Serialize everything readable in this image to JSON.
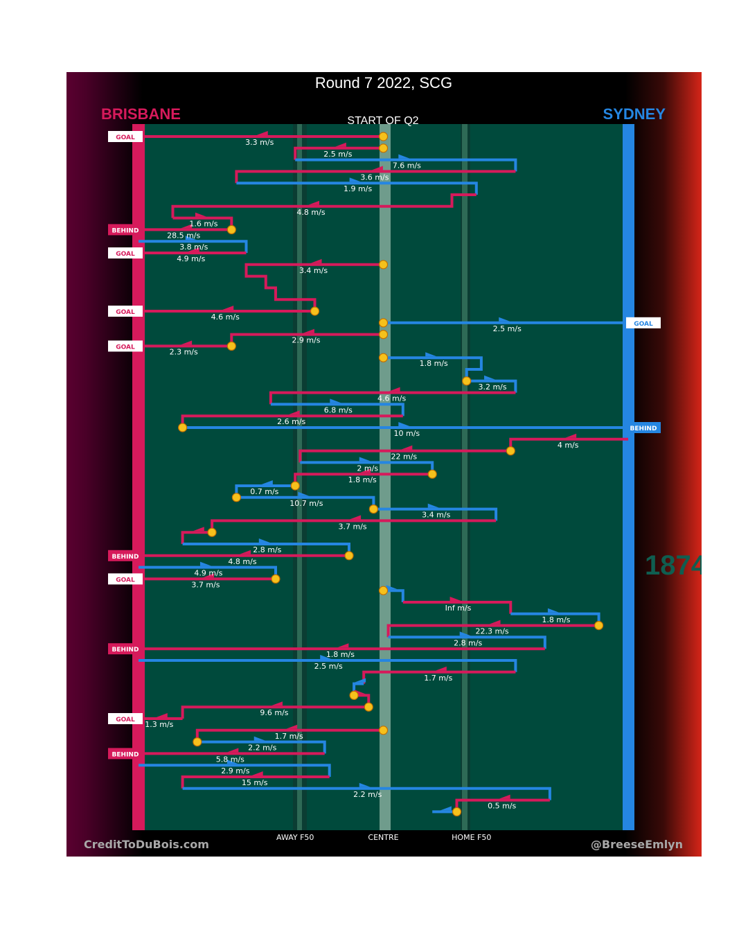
{
  "title": "Round 7 2022, SCG",
  "subtitle": "START OF Q2",
  "home_label": "BRISBANE",
  "away_label": "SYDNEY",
  "credit_left": "CreditToDuBois.com",
  "credit_right": "@BreeseEmlyn",
  "watermark_year": "1874",
  "colors": {
    "brisbane": "#d61a5b",
    "sydney": "#2586e2",
    "field": "#004a3c",
    "node": "#f6c11c"
  },
  "chart_data": {
    "type": "line",
    "title": "Round 7 2022, SCG",
    "xlabel": "",
    "ylabel": "",
    "xlim": [
      0,
      100
    ],
    "x_ticks": [
      {
        "pos": 32,
        "label": "AWAY F50"
      },
      {
        "pos": 50,
        "label": "CENTRE"
      },
      {
        "pos": 68,
        "label": "HOME F50"
      }
    ],
    "series": [
      {
        "team": "brisbane",
        "start": "node",
        "end": "GOAL",
        "label": "3.3 m/s",
        "pts": [
          [
            50,
            1
          ],
          [
            0,
            1
          ]
        ]
      },
      {
        "team": "brisbane",
        "start": "node",
        "end": "",
        "label": "2.5 m/s",
        "pts": [
          [
            50,
            2
          ],
          [
            32,
            2
          ],
          [
            32,
            3
          ]
        ]
      },
      {
        "team": "sydney",
        "start": "",
        "end": "",
        "label": "7.6 m/s",
        "pts": [
          [
            32,
            3
          ],
          [
            77,
            3
          ],
          [
            77,
            4
          ]
        ]
      },
      {
        "team": "brisbane",
        "start": "",
        "end": "",
        "label": "3.6 m/s",
        "pts": [
          [
            77,
            4
          ],
          [
            20,
            4
          ],
          [
            20,
            5
          ]
        ]
      },
      {
        "team": "sydney",
        "start": "",
        "end": "",
        "label": "1.9 m/s",
        "pts": [
          [
            20,
            5
          ],
          [
            69,
            5
          ],
          [
            69,
            6
          ]
        ]
      },
      {
        "team": "brisbane",
        "start": "",
        "end": "",
        "label": "4.8 m/s",
        "pts": [
          [
            69,
            6
          ],
          [
            64,
            6
          ],
          [
            64,
            7
          ],
          [
            7,
            7
          ],
          [
            7,
            8
          ]
        ]
      },
      {
        "team": "brisbane",
        "start": "",
        "end": "",
        "label": "1.6 m/s",
        "pts": [
          [
            7,
            8
          ],
          [
            19,
            8
          ],
          [
            19,
            9
          ]
        ]
      },
      {
        "team": "brisbane",
        "start": "node",
        "end": "BEHIND",
        "label": "28.5 m/s",
        "pts": [
          [
            19,
            9
          ],
          [
            0,
            9
          ]
        ]
      },
      {
        "team": "sydney",
        "start": "",
        "end": "",
        "label": "3.8 m/s",
        "pts": [
          [
            0,
            10
          ],
          [
            22,
            10
          ],
          [
            22,
            11
          ]
        ]
      },
      {
        "team": "brisbane",
        "start": "",
        "end": "GOAL",
        "label": "4.9 m/s",
        "pts": [
          [
            22,
            11
          ],
          [
            0,
            11
          ]
        ]
      },
      {
        "team": "brisbane",
        "start": "node",
        "end": "",
        "label": "3.4 m/s",
        "pts": [
          [
            50,
            12
          ],
          [
            22,
            12
          ],
          [
            22,
            13
          ],
          [
            26,
            13
          ],
          [
            26,
            14
          ],
          [
            28,
            14
          ],
          [
            28,
            15
          ],
          [
            36,
            15
          ],
          [
            36,
            16
          ]
        ]
      },
      {
        "team": "brisbane",
        "start": "node",
        "end": "GOAL",
        "label": "4.6 m/s",
        "pts": [
          [
            36,
            16
          ],
          [
            0,
            16
          ]
        ]
      },
      {
        "team": "sydney",
        "start": "node",
        "end": "GOAL",
        "label": "2.5 m/s",
        "pts": [
          [
            50,
            17
          ],
          [
            100,
            17
          ]
        ]
      },
      {
        "team": "brisbane",
        "start": "node",
        "end": "",
        "label": "2.9 m/s",
        "pts": [
          [
            50,
            18
          ],
          [
            19,
            18
          ],
          [
            19,
            19
          ]
        ]
      },
      {
        "team": "brisbane",
        "start": "node",
        "end": "GOAL",
        "label": "2.3 m/s",
        "pts": [
          [
            19,
            19
          ],
          [
            0,
            19
          ]
        ]
      },
      {
        "team": "sydney",
        "start": "node",
        "end": "",
        "label": "1.8 m/s",
        "pts": [
          [
            50,
            20
          ],
          [
            70,
            20
          ],
          [
            70,
            21
          ],
          [
            67,
            21
          ],
          [
            67,
            22
          ]
        ]
      },
      {
        "team": "sydney",
        "start": "node",
        "end": "",
        "label": "3.2 m/s",
        "pts": [
          [
            67,
            22
          ],
          [
            77,
            22
          ],
          [
            77,
            23
          ]
        ]
      },
      {
        "team": "brisbane",
        "start": "",
        "end": "",
        "label": "4.6 m/s",
        "pts": [
          [
            77,
            23
          ],
          [
            27,
            23
          ],
          [
            27,
            24
          ]
        ]
      },
      {
        "team": "sydney",
        "start": "",
        "end": "",
        "label": "6.8 m/s",
        "pts": [
          [
            27,
            24
          ],
          [
            54,
            24
          ],
          [
            54,
            25
          ]
        ]
      },
      {
        "team": "brisbane",
        "start": "",
        "end": "",
        "label": "2.6 m/s",
        "pts": [
          [
            54,
            25
          ],
          [
            9,
            25
          ],
          [
            9,
            26
          ]
        ]
      },
      {
        "team": "sydney",
        "start": "node",
        "end": "BEHIND",
        "label": "10 m/s",
        "pts": [
          [
            9,
            26
          ],
          [
            100,
            26
          ]
        ]
      },
      {
        "team": "brisbane",
        "start": "",
        "end": "",
        "label": "4 m/s",
        "pts": [
          [
            100,
            27
          ],
          [
            76,
            27
          ],
          [
            76,
            28
          ]
        ]
      },
      {
        "team": "brisbane",
        "start": "node",
        "end": "",
        "label": "22 m/s",
        "pts": [
          [
            76,
            28
          ],
          [
            33,
            28
          ],
          [
            33,
            29
          ]
        ]
      },
      {
        "team": "sydney",
        "start": "",
        "end": "",
        "label": "2 m/s",
        "pts": [
          [
            33,
            29
          ],
          [
            60,
            29
          ],
          [
            60,
            30
          ]
        ]
      },
      {
        "team": "brisbane",
        "start": "node",
        "end": "",
        "label": "1.8 m/s",
        "pts": [
          [
            60,
            30
          ],
          [
            32,
            30
          ],
          [
            32,
            31
          ]
        ]
      },
      {
        "team": "sydney",
        "start": "node",
        "end": "",
        "label": "0.7 m/s",
        "pts": [
          [
            32,
            31
          ],
          [
            20,
            31
          ],
          [
            20,
            32
          ]
        ]
      },
      {
        "team": "sydney",
        "start": "node",
        "end": "",
        "label": "10.7 m/s",
        "pts": [
          [
            20,
            32
          ],
          [
            48,
            32
          ],
          [
            48,
            33
          ]
        ]
      },
      {
        "team": "sydney",
        "start": "node",
        "end": "",
        "label": "3.4 m/s",
        "pts": [
          [
            48,
            33
          ],
          [
            73,
            33
          ],
          [
            73,
            34
          ]
        ]
      },
      {
        "team": "brisbane",
        "start": "",
        "end": "",
        "label": "3.7 m/s",
        "pts": [
          [
            73,
            34
          ],
          [
            15,
            34
          ],
          [
            15,
            35
          ]
        ]
      },
      {
        "team": "brisbane",
        "start": "node",
        "end": "",
        "label": "",
        "pts": [
          [
            15,
            35
          ],
          [
            9,
            35
          ],
          [
            9,
            36
          ]
        ]
      },
      {
        "team": "sydney",
        "start": "",
        "end": "",
        "label": "2.8 m/s",
        "pts": [
          [
            9,
            36
          ],
          [
            43,
            36
          ],
          [
            43,
            37
          ]
        ]
      },
      {
        "team": "brisbane",
        "start": "node",
        "end": "BEHIND",
        "label": "4.8 m/s",
        "pts": [
          [
            43,
            37
          ],
          [
            0,
            37
          ]
        ]
      },
      {
        "team": "sydney",
        "start": "",
        "end": "",
        "label": "4.9 m/s",
        "pts": [
          [
            0,
            38
          ],
          [
            28,
            38
          ],
          [
            28,
            39
          ]
        ]
      },
      {
        "team": "brisbane",
        "start": "node",
        "end": "GOAL",
        "label": "3.7 m/s",
        "pts": [
          [
            28,
            39
          ],
          [
            0,
            39
          ]
        ]
      },
      {
        "team": "sydney",
        "start": "node",
        "end": "",
        "label": "",
        "pts": [
          [
            50,
            40
          ],
          [
            54,
            40
          ],
          [
            54,
            41
          ]
        ]
      },
      {
        "team": "brisbane",
        "start": "",
        "end": "",
        "label": "Inf m/s",
        "pts": [
          [
            54,
            41
          ],
          [
            76,
            41
          ],
          [
            76,
            42
          ]
        ]
      },
      {
        "team": "sydney",
        "start": "",
        "end": "",
        "label": "1.8 m/s",
        "pts": [
          [
            76,
            42
          ],
          [
            94,
            42
          ],
          [
            94,
            43
          ]
        ]
      },
      {
        "team": "brisbane",
        "start": "node",
        "end": "",
        "label": "22.3 m/s",
        "pts": [
          [
            94,
            43
          ],
          [
            51,
            43
          ],
          [
            51,
            44
          ]
        ]
      },
      {
        "team": "sydney",
        "start": "",
        "end": "",
        "label": "2.8 m/s",
        "pts": [
          [
            51,
            44
          ],
          [
            83,
            44
          ],
          [
            83,
            45
          ]
        ]
      },
      {
        "team": "brisbane",
        "start": "",
        "end": "BEHIND",
        "label": "1.8 m/s",
        "pts": [
          [
            83,
            45
          ],
          [
            0,
            45
          ]
        ]
      },
      {
        "team": "sydney",
        "start": "",
        "end": "",
        "label": "2.5 m/s",
        "pts": [
          [
            0,
            46
          ],
          [
            77,
            46
          ],
          [
            77,
            47
          ]
        ]
      },
      {
        "team": "brisbane",
        "start": "",
        "end": "",
        "label": "1.7 m/s",
        "pts": [
          [
            77,
            47
          ],
          [
            46,
            47
          ],
          [
            46,
            48
          ]
        ]
      },
      {
        "team": "sydney",
        "start": "",
        "end": "",
        "label": "",
        "pts": [
          [
            46,
            48
          ],
          [
            44,
            48
          ],
          [
            44,
            49
          ]
        ]
      },
      {
        "team": "brisbane",
        "start": "node",
        "end": "",
        "label": "",
        "pts": [
          [
            44,
            49
          ],
          [
            47,
            49
          ],
          [
            47,
            50
          ]
        ]
      },
      {
        "team": "brisbane",
        "start": "node",
        "end": "",
        "label": "9.6 m/s",
        "pts": [
          [
            47,
            50
          ],
          [
            9,
            50
          ],
          [
            9,
            51
          ]
        ]
      },
      {
        "team": "brisbane",
        "start": "",
        "end": "GOAL",
        "label": "1.3 m/s",
        "pts": [
          [
            9,
            51
          ],
          [
            0,
            51
          ]
        ]
      },
      {
        "team": "brisbane",
        "start": "node",
        "end": "",
        "label": "1.7 m/s",
        "pts": [
          [
            50,
            52
          ],
          [
            12,
            52
          ],
          [
            12,
            53
          ]
        ]
      },
      {
        "team": "sydney",
        "start": "node",
        "end": "",
        "label": "2.2 m/s",
        "pts": [
          [
            12,
            53
          ],
          [
            38,
            53
          ],
          [
            38,
            54
          ]
        ]
      },
      {
        "team": "brisbane",
        "start": "",
        "end": "BEHIND",
        "label": "5.8 m/s",
        "pts": [
          [
            38,
            54
          ],
          [
            0,
            54
          ]
        ]
      },
      {
        "team": "sydney",
        "start": "",
        "end": "",
        "label": "2.9 m/s",
        "pts": [
          [
            0,
            55
          ],
          [
            39,
            55
          ],
          [
            39,
            56
          ]
        ]
      },
      {
        "team": "brisbane",
        "start": "",
        "end": "",
        "label": "15 m/s",
        "pts": [
          [
            39,
            56
          ],
          [
            9,
            56
          ],
          [
            9,
            57
          ]
        ]
      },
      {
        "team": "sydney",
        "start": "",
        "end": "",
        "label": "2.2 m/s",
        "pts": [
          [
            9,
            57
          ],
          [
            84,
            57
          ],
          [
            84,
            58
          ]
        ]
      },
      {
        "team": "brisbane",
        "start": "",
        "end": "",
        "label": "0.5 m/s",
        "pts": [
          [
            84,
            58
          ],
          [
            65,
            58
          ],
          [
            65,
            59
          ]
        ]
      },
      {
        "team": "sydney",
        "start": "node",
        "end": "",
        "label": "",
        "pts": [
          [
            65,
            59
          ],
          [
            60,
            59
          ]
        ]
      }
    ]
  }
}
